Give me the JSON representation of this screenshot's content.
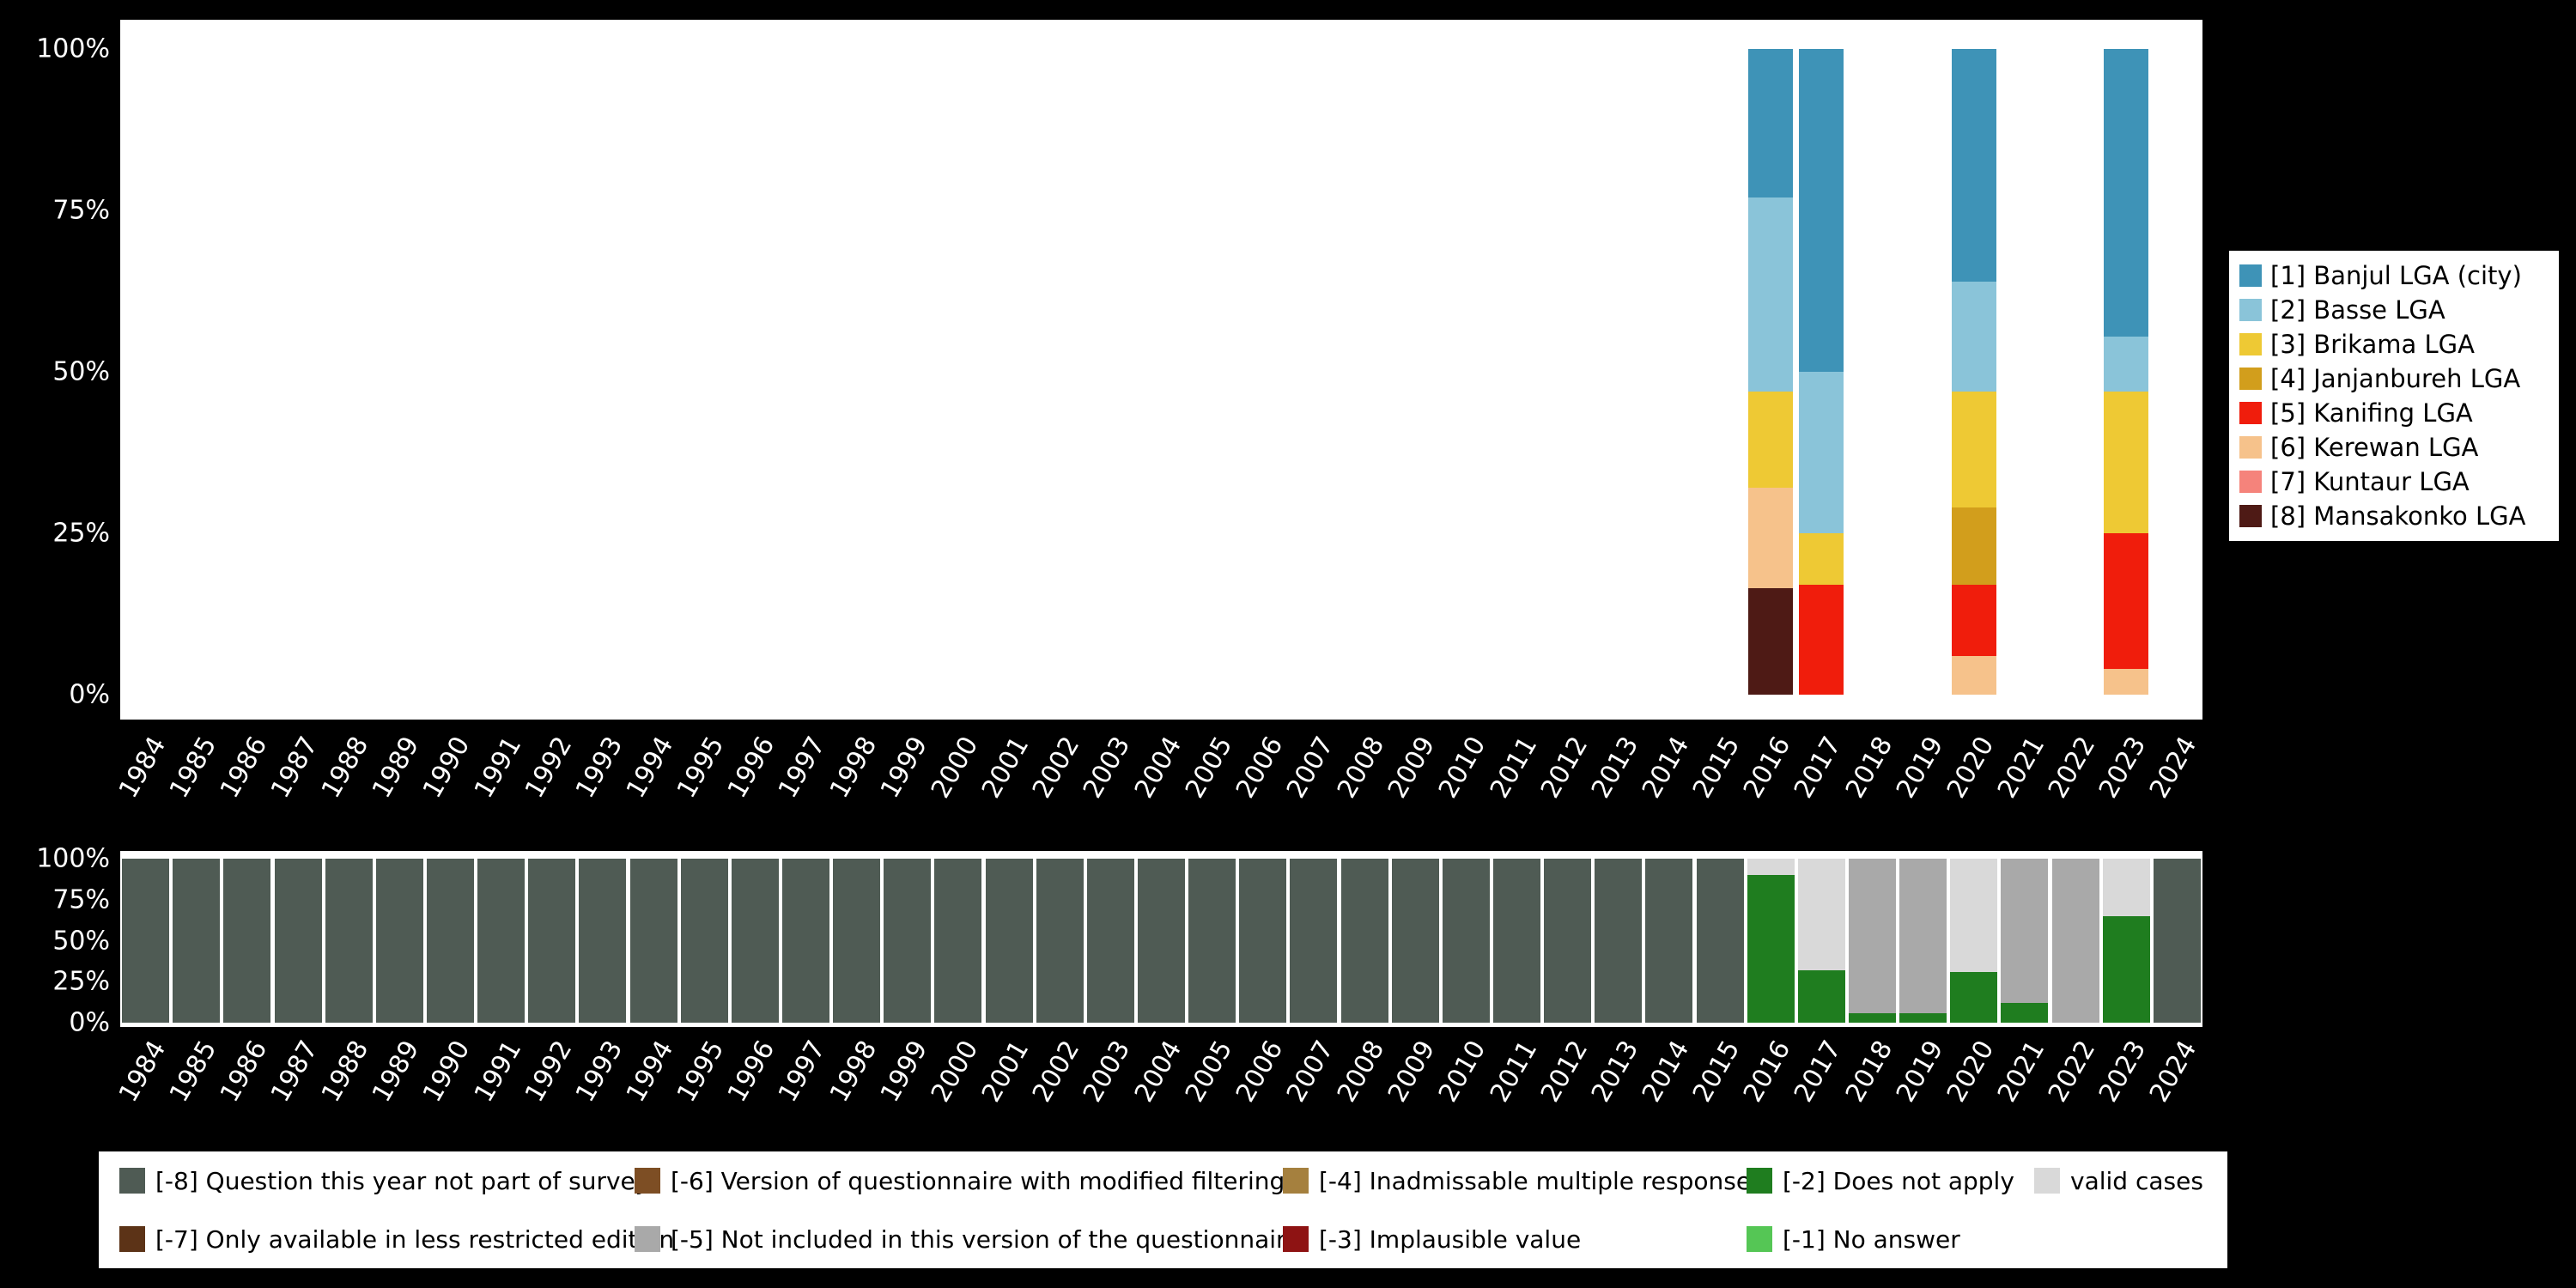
{
  "figure": {
    "background": "#000000",
    "panel_background": "#ffffff",
    "axis_text_color": "#ffffff",
    "legend_text_color": "#000000"
  },
  "years": [
    "1984",
    "1985",
    "1986",
    "1987",
    "1988",
    "1989",
    "1990",
    "1991",
    "1992",
    "1993",
    "1994",
    "1995",
    "1996",
    "1997",
    "1998",
    "1999",
    "2000",
    "2001",
    "2002",
    "2003",
    "2004",
    "2005",
    "2006",
    "2007",
    "2008",
    "2009",
    "2010",
    "2011",
    "2012",
    "2013",
    "2014",
    "2015",
    "2016",
    "2017",
    "2018",
    "2019",
    "2020",
    "2021",
    "2022",
    "2023",
    "2024"
  ],
  "y_ticks_top_to_bottom": [
    "100%",
    "75%",
    "50%",
    "25%",
    "0%"
  ],
  "lga_categories": [
    {
      "key": "banjul",
      "label": "[1] Banjul LGA (city)",
      "color": "#3e93b7"
    },
    {
      "key": "basse",
      "label": "[2] Basse LGA",
      "color": "#8ac4d9"
    },
    {
      "key": "brikama",
      "label": "[3] Brikama LGA",
      "color": "#eec934"
    },
    {
      "key": "janjanbureh",
      "label": "[4] Janjanbureh LGA",
      "color": "#d29e1c"
    },
    {
      "key": "kanifing",
      "label": "[5] Kanifing LGA",
      "color": "#f01d0c"
    },
    {
      "key": "kerewan",
      "label": "[6] Kerewan LGA",
      "color": "#f6c28b"
    },
    {
      "key": "kuntaur",
      "label": "[7] Kuntaur LGA",
      "color": "#f5837b"
    },
    {
      "key": "mansakonko",
      "label": "[8] Mansakonko LGA",
      "color": "#4e1a15"
    }
  ],
  "missing_codes": [
    {
      "key": "not_part_of_survey",
      "label": "[-8] Question this year not part of survey",
      "color": "#4f5b54"
    },
    {
      "key": "less_restricted_edition",
      "label": "[-7] Only available in less restricted edition",
      "color": "#5c3317"
    },
    {
      "key": "modified_filtering",
      "label": "[-6] Version of questionnaire with modified filtering",
      "color": "#7d4e24"
    },
    {
      "key": "not_included_version",
      "label": "[-5] Not included in this version of the questionnaire",
      "color": "#a9a9a9"
    },
    {
      "key": "inadmissable_multiple",
      "label": "[-4] Inadmissable multiple response",
      "color": "#a5803e"
    },
    {
      "key": "implausible_value",
      "label": "[-3] Implausible value",
      "color": "#8e1313"
    },
    {
      "key": "does_not_apply",
      "label": "[-2] Does not apply",
      "color": "#1f7d1f"
    },
    {
      "key": "no_answer",
      "label": "[-1] No answer",
      "color": "#55c655"
    },
    {
      "key": "valid",
      "label": "valid cases",
      "color": "#d9d9d9"
    }
  ],
  "chart_data": [
    {
      "id": "lga-distribution-by-year",
      "type": "bar",
      "stacked": true,
      "unit": "percent",
      "ylim": [
        0,
        100
      ],
      "yticks": [
        "0%",
        "25%",
        "50%",
        "75%",
        "100%"
      ],
      "x_range": [
        "1984",
        "2024"
      ],
      "legend_position": "right",
      "bars": [
        {
          "year": "2016",
          "segments": [
            [
              "mansakonko",
              16.5
            ],
            [
              "kerewan",
              15.5
            ],
            [
              "brikama",
              15
            ],
            [
              "basse",
              30
            ],
            [
              "banjul",
              23
            ]
          ]
        },
        {
          "year": "2017",
          "segments": [
            [
              "kanifing",
              17
            ],
            [
              "brikama",
              8
            ],
            [
              "basse",
              25
            ],
            [
              "banjul",
              50
            ]
          ]
        },
        {
          "year": "2020",
          "segments": [
            [
              "kerewan",
              6
            ],
            [
              "kanifing",
              11
            ],
            [
              "janjanbureh",
              12
            ],
            [
              "brikama",
              18
            ],
            [
              "basse",
              17
            ],
            [
              "banjul",
              36
            ]
          ]
        },
        {
          "year": "2023",
          "segments": [
            [
              "kerewan",
              4
            ],
            [
              "kanifing",
              21
            ],
            [
              "brikama",
              22
            ],
            [
              "basse",
              8.5
            ],
            [
              "banjul",
              44.5
            ]
          ]
        }
      ]
    },
    {
      "id": "missing-values-by-year",
      "type": "bar",
      "stacked": true,
      "unit": "percent",
      "ylim": [
        0,
        100
      ],
      "yticks": [
        "0%",
        "25%",
        "50%",
        "75%",
        "100%"
      ],
      "x_range": [
        "1984",
        "2024"
      ],
      "legend_position": "bottom",
      "default_segments": [
        [
          "not_part_of_survey",
          100
        ]
      ],
      "bar_overrides": {
        "2016": [
          [
            "does_not_apply",
            90
          ],
          [
            "valid",
            10
          ]
        ],
        "2017": [
          [
            "does_not_apply",
            32
          ],
          [
            "valid",
            68
          ]
        ],
        "2018": [
          [
            "does_not_apply",
            6
          ],
          [
            "not_included_version",
            94
          ]
        ],
        "2019": [
          [
            "does_not_apply",
            6
          ],
          [
            "not_included_version",
            94
          ]
        ],
        "2020": [
          [
            "does_not_apply",
            31
          ],
          [
            "valid",
            69
          ]
        ],
        "2021": [
          [
            "does_not_apply",
            12
          ],
          [
            "not_included_version",
            88
          ]
        ],
        "2022": [
          [
            "not_included_version",
            100
          ]
        ],
        "2023": [
          [
            "does_not_apply",
            65
          ],
          [
            "valid",
            35
          ]
        ]
      }
    }
  ]
}
